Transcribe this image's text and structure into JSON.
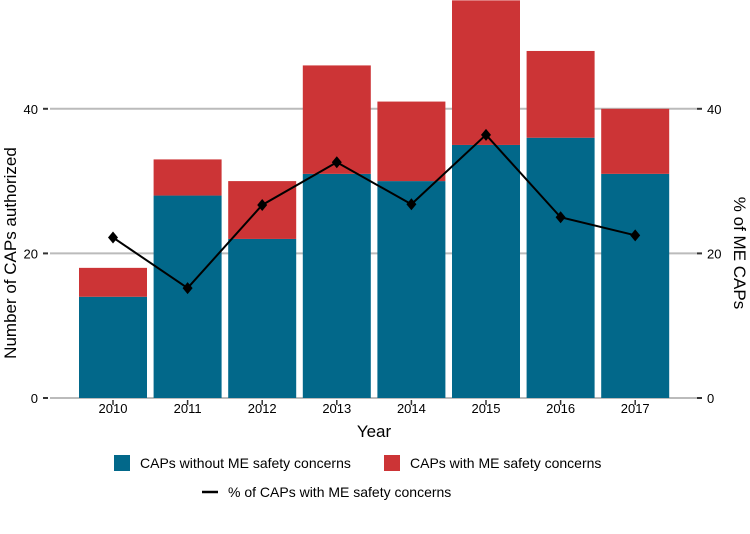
{
  "chart_data": {
    "type": "bar",
    "stacked": true,
    "categories": [
      "2010",
      "2011",
      "2012",
      "2013",
      "2014",
      "2015",
      "2016",
      "2017"
    ],
    "series": [
      {
        "name": "CAPs without ME safety concerns",
        "type": "bar",
        "color": "#02688A",
        "values": [
          14,
          28,
          22,
          31,
          30,
          35,
          36,
          31
        ]
      },
      {
        "name": "CAPs with ME safety concerns",
        "type": "bar",
        "color": "#CC3436",
        "values": [
          4,
          5,
          8,
          15,
          11,
          20,
          12,
          9
        ]
      },
      {
        "name": "% of CAPs with ME safety concerns",
        "type": "line",
        "axis": "right",
        "color": "#000000",
        "values": [
          22.2,
          15.2,
          26.7,
          32.6,
          26.8,
          36.4,
          25.0,
          22.5
        ]
      }
    ],
    "xlabel": "Year",
    "ylabel": "Number of CAPs authorized",
    "y2label": "% of ME CAPs",
    "ylim": [
      0,
      55
    ],
    "y2lim": [
      0,
      55
    ],
    "yticks": [
      "0",
      "20",
      "40"
    ],
    "y2ticks": [
      "0",
      "20",
      "40"
    ],
    "grid": true,
    "legend_position": "bottom"
  }
}
